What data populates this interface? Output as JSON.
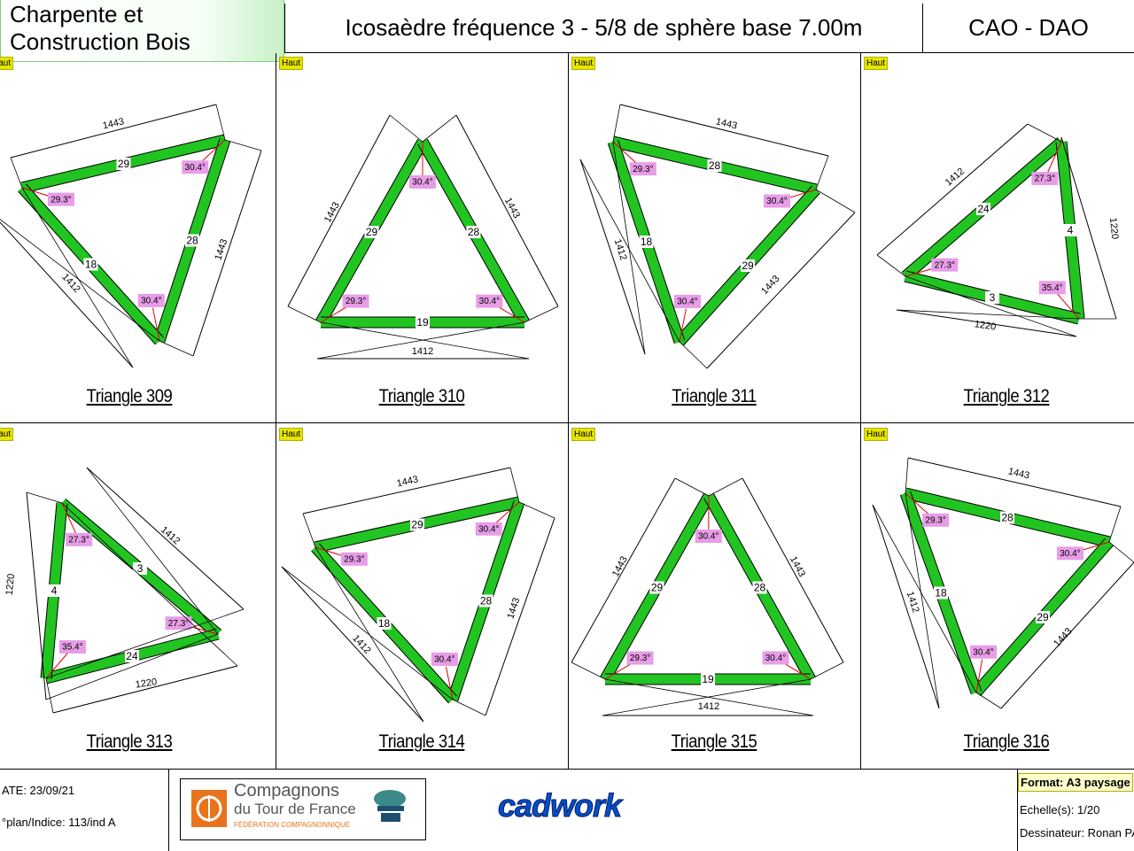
{
  "header": {
    "company": "Charpente et Construction Bois",
    "title": "Icosaèdre fréquence 3 - 5/8 de sphère base 7.00m",
    "cao": "CAO - DAO"
  },
  "panels": [
    {
      "label": "Triangle 309",
      "haut": "Haut",
      "edges": [
        {
          "len": "1443"
        },
        {
          "len": "1443"
        },
        {
          "len": "1412"
        }
      ],
      "bars": [
        "29",
        "28",
        "18"
      ],
      "angles": [
        "29.3°",
        "30.4°",
        "30.4°"
      ]
    },
    {
      "label": "Triangle 310",
      "haut": "Haut",
      "edges": [
        {
          "len": "1443"
        },
        {
          "len": "1443"
        },
        {
          "len": "1412"
        }
      ],
      "bars": [
        "29",
        "28",
        "19"
      ],
      "angles": [
        "29.3°",
        "30.4°",
        "30.4°"
      ]
    },
    {
      "label": "Triangle 311",
      "haut": "Haut",
      "edges": [
        {
          "len": "1443"
        },
        {
          "len": "1443"
        },
        {
          "len": "1412"
        }
      ],
      "bars": [
        "28",
        "29",
        "18"
      ],
      "angles": [
        "29.3°",
        "30.4°",
        "30.4°"
      ]
    },
    {
      "label": "Triangle 312",
      "haut": "Haut",
      "edges": [
        {
          "len": "1412"
        },
        {
          "len": "1220"
        },
        {
          "len": "1220"
        }
      ],
      "bars": [
        "24",
        "4",
        "3"
      ],
      "angles": [
        "27.3°",
        "27.3°",
        "35.4°"
      ]
    },
    {
      "label": "Triangle 313",
      "haut": "Haut",
      "edges": [
        {
          "len": "1220"
        },
        {
          "len": "1412"
        },
        {
          "len": "1220"
        }
      ],
      "bars": [
        "3",
        "24",
        "4"
      ],
      "angles": [
        "27.3°",
        "27.3°",
        "35.4°"
      ]
    },
    {
      "label": "Triangle 314",
      "haut": "Haut",
      "edges": [
        {
          "len": "1443"
        },
        {
          "len": "1443"
        },
        {
          "len": "1412"
        }
      ],
      "bars": [
        "29",
        "28",
        "18"
      ],
      "angles": [
        "29.3°",
        "30.4°",
        "30.4°"
      ]
    },
    {
      "label": "Triangle 315",
      "haut": "Haut",
      "edges": [
        {
          "len": "1443"
        },
        {
          "len": "1443"
        },
        {
          "len": "1412"
        }
      ],
      "bars": [
        "29",
        "28",
        "19"
      ],
      "angles": [
        "29.3°",
        "30.4°",
        "30.4°"
      ]
    },
    {
      "label": "Triangle 316",
      "haut": "Haut",
      "edges": [
        {
          "len": "1443"
        },
        {
          "len": "1443"
        },
        {
          "len": "1412"
        }
      ],
      "bars": [
        "28",
        "29",
        "18"
      ],
      "angles": [
        "29.3°",
        "30.4°",
        "30.4°"
      ]
    }
  ],
  "footer": {
    "date": "ATE: 23/09/21",
    "plan": "°plan/Indice: 113/ind A",
    "logo_line1": "Compagnons",
    "logo_line2": "du Tour de France",
    "logo_line3": "Fédération Compagnonnique",
    "cadwork": "cadwork",
    "format": "Format: A3 paysage",
    "echelle": "Echelle(s): 1/20",
    "dessinateur": "Dessinateur: Ronan PAPI"
  },
  "colors": {
    "bar": "#22c422",
    "angle_bg": "#e79de7",
    "haut_bg": "#e6e600"
  }
}
